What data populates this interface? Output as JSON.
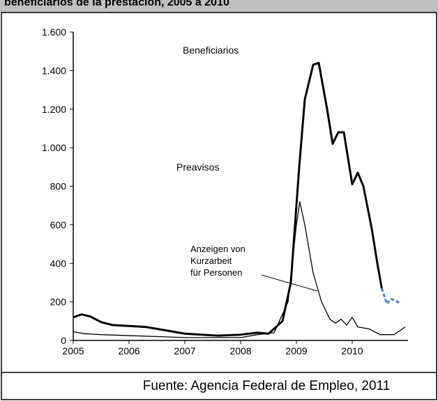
{
  "chart_data": {
    "type": "line",
    "title": "beneficiarios de la prestación, 2005 a 2010",
    "source": "Fuente: Agencia Federal de Empleo, 2011",
    "annotation": "Anzeigen von Kurzarbeit für Personen",
    "xlim": [
      2005,
      2011
    ],
    "xticks": [
      2005,
      2006,
      2007,
      2008,
      2009,
      2010
    ],
    "ylim": [
      0,
      1600
    ],
    "yticks": [
      0,
      200,
      400,
      600,
      800,
      {
        "value": 1000,
        "label": "1.000"
      },
      {
        "value": 1200,
        "label": "1.200"
      },
      {
        "value": 1400,
        "label": "1.400"
      },
      {
        "value": 1600,
        "label": "1.600"
      }
    ],
    "series": [
      {
        "name": "Beneficiarios",
        "color": "#000000",
        "width": 3,
        "x": [
          2005.0,
          2005.15,
          2005.3,
          2005.5,
          2005.7,
          2006.0,
          2006.3,
          2006.6,
          2007.0,
          2007.3,
          2007.6,
          2008.0,
          2008.3,
          2008.5,
          2008.75,
          2008.9,
          2009.05,
          2009.15,
          2009.3,
          2009.4,
          2009.55,
          2009.65,
          2009.75,
          2009.85,
          2010.0,
          2010.1,
          2010.2,
          2010.35,
          2010.45,
          2010.53
        ],
        "values": [
          120,
          135,
          125,
          95,
          80,
          75,
          70,
          55,
          35,
          30,
          25,
          30,
          40,
          35,
          100,
          300,
          900,
          1250,
          1430,
          1440,
          1200,
          1020,
          1080,
          1080,
          810,
          870,
          800,
          580,
          400,
          270
        ]
      },
      {
        "color": "#4f81bd",
        "width": 3,
        "dashed": true,
        "x": [
          2010.53,
          2010.62,
          2010.7,
          2010.78,
          2010.85
        ],
        "values": [
          270,
          190,
          215,
          205,
          195
        ]
      },
      {
        "name": "Preavisos",
        "color": "#000000",
        "width": 1.3,
        "x": [
          2005.0,
          2005.2,
          2005.5,
          2006.0,
          2007.0,
          2007.5,
          2008.0,
          2008.3,
          2008.6,
          2008.85,
          2009.0,
          2009.06,
          2009.15,
          2009.3,
          2009.45,
          2009.6,
          2009.7,
          2009.8,
          2009.9,
          2010.0,
          2010.1,
          2010.3,
          2010.5,
          2010.75,
          2010.95
        ],
        "values": [
          45,
          35,
          30,
          25,
          15,
          15,
          15,
          30,
          40,
          200,
          600,
          720,
          600,
          350,
          200,
          110,
          90,
          110,
          80,
          120,
          70,
          60,
          30,
          30,
          70
        ]
      }
    ]
  }
}
